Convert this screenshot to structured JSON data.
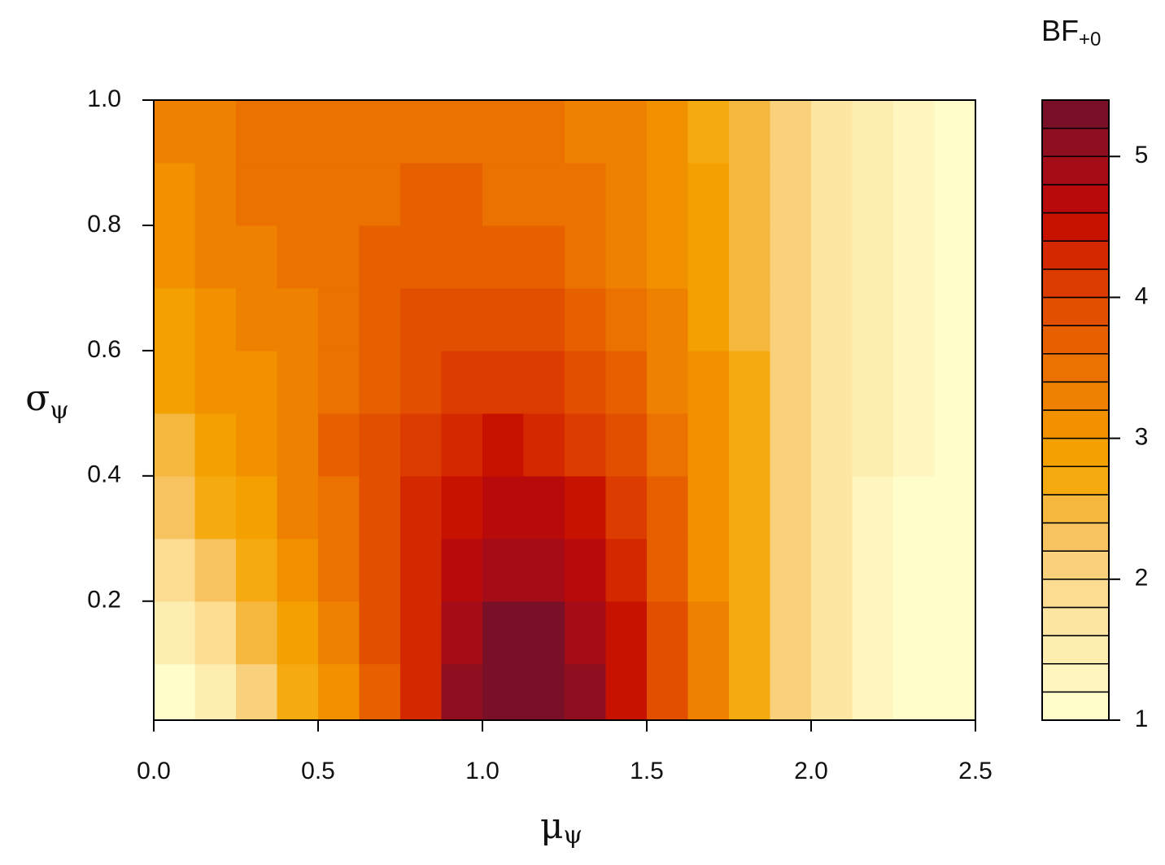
{
  "chart_data": {
    "type": "contour",
    "xlabel": "μ",
    "xlabel_sub": "ψ",
    "ylabel": "σ",
    "ylabel_sub": "ψ",
    "legend_title": "BF",
    "legend_title_sub": "+0",
    "xlim": [
      0,
      2.5
    ],
    "ylim": [
      0.01,
      1.0
    ],
    "xticks": [
      {
        "value": 0,
        "label": "0.0"
      },
      0.5,
      {
        "value": 1,
        "label": "1.0"
      },
      1.5,
      {
        "value": 2,
        "label": "2.0"
      },
      2.5
    ],
    "yticks": [
      0.2,
      0.4,
      0.6,
      0.8,
      {
        "value": 1,
        "label": "1.0"
      }
    ],
    "zlim": [
      1,
      5.4
    ],
    "zticks": [
      1,
      2,
      3,
      4,
      5
    ],
    "levels": [
      1.0,
      1.2,
      1.4,
      1.6,
      1.8,
      2.0,
      2.2,
      2.4,
      2.6,
      2.8,
      3.0,
      3.2,
      3.4,
      3.6,
      3.8,
      4.0,
      4.2,
      4.4,
      4.6,
      4.8,
      5.0,
      5.2,
      5.4
    ],
    "colors": [
      "#FFFECB",
      "#FEF6BE",
      "#FDEEB0",
      "#FCE6A2",
      "#FBDC91",
      "#F9D07C",
      "#F7C25F",
      "#F6B73F",
      "#F5AA10",
      "#F3A000",
      "#F19100",
      "#EE8200",
      "#EB7100",
      "#E76000",
      "#E24F00",
      "#DC3C00",
      "#D42800",
      "#C81200",
      "#B80A0A",
      "#A40D17",
      "#8F0E20",
      "#7A0F28"
    ],
    "x": [
      0.0625,
      0.1875,
      0.3125,
      0.4375,
      0.5625,
      0.6875,
      0.8125,
      0.9375,
      1.0625,
      1.1875,
      1.3125,
      1.4375,
      1.5625,
      1.6875,
      1.8125,
      1.9375,
      2.0625,
      2.1875,
      2.3125,
      2.4375
    ],
    "y": [
      0.05,
      0.15,
      0.25,
      0.35,
      0.45,
      0.55,
      0.65,
      0.75,
      0.85,
      0.95
    ],
    "z": [
      [
        1.1,
        1.5,
        2.0,
        2.6,
        3.1,
        3.7,
        4.3,
        5.0,
        5.35,
        5.4,
        5.1,
        4.5,
        3.9,
        3.2,
        2.6,
        2.0,
        1.6,
        1.3,
        1.15,
        1.05
      ],
      [
        1.5,
        1.9,
        2.4,
        2.9,
        3.3,
        3.8,
        4.3,
        4.8,
        5.2,
        5.2,
        4.9,
        4.4,
        3.8,
        3.2,
        2.6,
        2.0,
        1.6,
        1.3,
        1.15,
        1.05
      ],
      [
        1.9,
        2.3,
        2.7,
        3.1,
        3.5,
        3.9,
        4.3,
        4.7,
        4.9,
        4.9,
        4.6,
        4.2,
        3.7,
        3.1,
        2.6,
        2.0,
        1.6,
        1.3,
        1.15,
        1.05
      ],
      [
        2.2,
        2.6,
        2.9,
        3.2,
        3.5,
        3.9,
        4.2,
        4.5,
        4.6,
        4.6,
        4.4,
        4.0,
        3.6,
        3.1,
        2.6,
        2.1,
        1.6,
        1.35,
        1.15,
        1.05
      ],
      [
        2.5,
        2.8,
        3.0,
        3.3,
        3.6,
        3.8,
        4.1,
        4.3,
        4.4,
        4.3,
        4.1,
        3.8,
        3.4,
        3.0,
        2.6,
        2.1,
        1.7,
        1.4,
        1.2,
        1.05
      ],
      [
        2.8,
        3.0,
        3.1,
        3.3,
        3.5,
        3.7,
        3.9,
        4.1,
        4.1,
        4.0,
        3.9,
        3.6,
        3.3,
        3.0,
        2.6,
        2.1,
        1.7,
        1.4,
        1.2,
        1.05
      ],
      [
        2.9,
        3.1,
        3.2,
        3.3,
        3.5,
        3.6,
        3.8,
        3.9,
        3.9,
        3.8,
        3.7,
        3.5,
        3.2,
        2.9,
        2.5,
        2.1,
        1.7,
        1.4,
        1.2,
        1.05
      ],
      [
        3.0,
        3.2,
        3.3,
        3.4,
        3.5,
        3.6,
        3.7,
        3.7,
        3.7,
        3.6,
        3.5,
        3.3,
        3.1,
        2.8,
        2.5,
        2.1,
        1.7,
        1.45,
        1.2,
        1.1
      ],
      [
        3.1,
        3.3,
        3.4,
        3.4,
        3.5,
        3.5,
        3.6,
        3.6,
        3.5,
        3.5,
        3.4,
        3.2,
        3.0,
        2.8,
        2.4,
        2.1,
        1.7,
        1.45,
        1.2,
        1.1
      ],
      [
        3.2,
        3.3,
        3.4,
        3.4,
        3.5,
        3.5,
        3.5,
        3.5,
        3.5,
        3.4,
        3.3,
        3.2,
        3.0,
        2.7,
        2.4,
        2.0,
        1.7,
        1.45,
        1.2,
        1.1
      ]
    ]
  }
}
